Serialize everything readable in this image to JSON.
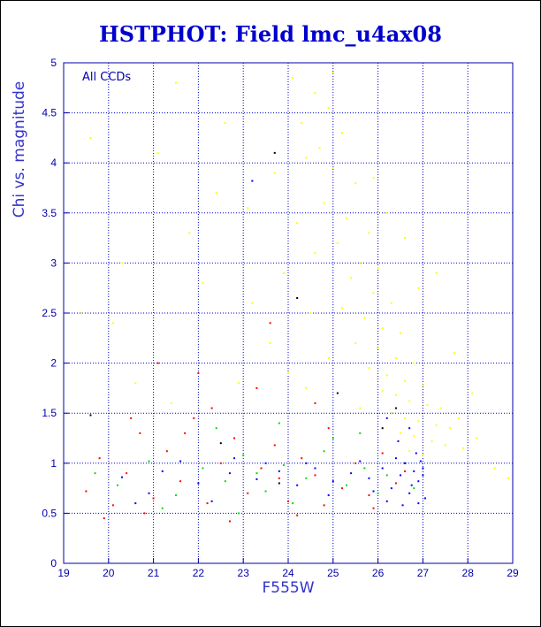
{
  "colors": {
    "yellow": "#ffff00",
    "red": "#ff0000",
    "green": "#00dd00",
    "blue": "#0000ff",
    "black": "#000000",
    "axis": "#0000aa",
    "text": "#0000cc"
  },
  "chart_data": {
    "type": "scatter",
    "title": "HSTPHOT: Field lmc_u4ax08",
    "xlabel": "F555W",
    "ylabel": "Chi vs. magnitude",
    "annotation": "All CCDs",
    "xlim": [
      19,
      29
    ],
    "ylim": [
      0,
      5
    ],
    "xticks": [
      "19",
      "20",
      "21",
      "22",
      "23",
      "24",
      "25",
      "26",
      "27",
      "28",
      "29"
    ],
    "yticks": [
      "0",
      "0.5",
      "1",
      "1.5",
      "2",
      "2.5",
      "3",
      "3.5",
      "4",
      "4.5",
      "5"
    ],
    "grid": true,
    "series": [
      {
        "color": "yellow",
        "points": [
          [
            24.1,
            4.85
          ],
          [
            24.6,
            4.7
          ],
          [
            24.9,
            4.55
          ],
          [
            25.2,
            4.3
          ],
          [
            24.4,
            4.05
          ],
          [
            25.0,
            3.95
          ],
          [
            25.5,
            3.8
          ],
          [
            24.8,
            3.6
          ],
          [
            25.3,
            3.45
          ],
          [
            25.8,
            3.3
          ],
          [
            25.1,
            3.2
          ],
          [
            24.6,
            3.1
          ],
          [
            25.6,
            3.0
          ],
          [
            26.0,
            2.95
          ],
          [
            25.4,
            2.85
          ],
          [
            25.9,
            2.7
          ],
          [
            26.3,
            2.6
          ],
          [
            25.2,
            2.55
          ],
          [
            25.7,
            2.45
          ],
          [
            26.1,
            2.35
          ],
          [
            26.5,
            2.3
          ],
          [
            25.5,
            2.2
          ],
          [
            26.0,
            2.15
          ],
          [
            26.4,
            2.05
          ],
          [
            26.8,
            2.0
          ],
          [
            25.8,
            1.95
          ],
          [
            26.2,
            1.88
          ],
          [
            26.6,
            1.82
          ],
          [
            27.0,
            1.78
          ],
          [
            26.1,
            1.72
          ],
          [
            26.4,
            1.68
          ],
          [
            26.7,
            1.62
          ],
          [
            27.1,
            1.58
          ],
          [
            27.4,
            1.55
          ],
          [
            26.3,
            1.5
          ],
          [
            26.6,
            1.45
          ],
          [
            26.9,
            1.42
          ],
          [
            27.3,
            1.38
          ],
          [
            27.6,
            1.35
          ],
          [
            26.5,
            1.3
          ],
          [
            26.8,
            1.27
          ],
          [
            27.2,
            1.22
          ],
          [
            27.5,
            1.18
          ],
          [
            27.9,
            1.15
          ],
          [
            26.7,
            1.12
          ],
          [
            27.0,
            1.08
          ],
          [
            28.2,
            1.25
          ],
          [
            28.6,
            0.95
          ],
          [
            27.8,
            1.45
          ],
          [
            26.2,
            3.5
          ],
          [
            25.0,
            4.9
          ],
          [
            24.3,
            4.4
          ],
          [
            23.7,
            3.9
          ],
          [
            24.2,
            3.4
          ],
          [
            23.9,
            2.9
          ],
          [
            24.5,
            2.5
          ],
          [
            23.6,
            2.2
          ],
          [
            24.0,
            1.9
          ],
          [
            22.6,
            4.4
          ],
          [
            21.8,
            3.3
          ],
          [
            20.3,
            3.0
          ],
          [
            19.6,
            4.25
          ],
          [
            21.5,
            4.8
          ],
          [
            23.2,
            2.6
          ],
          [
            26.9,
            2.75
          ],
          [
            27.7,
            2.1
          ],
          [
            28.1,
            1.7
          ],
          [
            28.9,
            0.85
          ],
          [
            22.9,
            1.8
          ],
          [
            21.4,
            1.6
          ],
          [
            20.6,
            1.8
          ],
          [
            19.4,
            2.5
          ],
          [
            20.1,
            2.4
          ],
          [
            22.1,
            2.8
          ],
          [
            24.7,
            4.15
          ],
          [
            25.9,
            3.85
          ],
          [
            26.6,
            3.25
          ],
          [
            27.3,
            2.9
          ],
          [
            23.1,
            3.55
          ],
          [
            22.4,
            3.7
          ],
          [
            21.1,
            4.1
          ],
          [
            24.9,
            2.05
          ],
          [
            25.6,
            1.55
          ],
          [
            24.4,
            1.75
          ]
        ]
      },
      {
        "color": "red",
        "points": [
          [
            19.5,
            0.72
          ],
          [
            19.8,
            1.05
          ],
          [
            20.1,
            0.58
          ],
          [
            20.4,
            0.9
          ],
          [
            20.7,
            1.3
          ],
          [
            21.0,
            0.65
          ],
          [
            21.3,
            1.12
          ],
          [
            21.6,
            0.82
          ],
          [
            21.9,
            1.45
          ],
          [
            22.2,
            0.6
          ],
          [
            22.5,
            1.0
          ],
          [
            22.8,
            1.25
          ],
          [
            23.1,
            0.7
          ],
          [
            23.4,
            0.95
          ],
          [
            23.7,
            1.18
          ],
          [
            24.0,
            0.62
          ],
          [
            24.3,
            1.05
          ],
          [
            24.6,
            0.88
          ],
          [
            24.9,
            1.35
          ],
          [
            25.2,
            0.75
          ],
          [
            25.5,
            1.0
          ],
          [
            25.8,
            0.68
          ],
          [
            26.1,
            1.1
          ],
          [
            26.4,
            0.8
          ],
          [
            23.3,
            1.75
          ],
          [
            22.0,
            1.9
          ],
          [
            24.6,
            1.6
          ],
          [
            21.1,
            2.0
          ],
          [
            19.9,
            0.45
          ],
          [
            20.8,
            0.5
          ],
          [
            22.7,
            0.42
          ],
          [
            24.2,
            0.48
          ],
          [
            25.9,
            0.55
          ],
          [
            23.8,
            0.85
          ],
          [
            20.5,
            1.45
          ],
          [
            26.6,
            0.92
          ],
          [
            22.3,
            1.55
          ],
          [
            23.6,
            2.4
          ],
          [
            21.7,
            1.3
          ],
          [
            24.8,
            0.58
          ]
        ]
      },
      {
        "color": "green",
        "points": [
          [
            20.2,
            0.78
          ],
          [
            20.9,
            1.02
          ],
          [
            21.5,
            0.68
          ],
          [
            22.1,
            0.95
          ],
          [
            22.6,
            0.82
          ],
          [
            23.0,
            1.08
          ],
          [
            23.5,
            0.72
          ],
          [
            23.9,
            0.98
          ],
          [
            24.4,
            0.85
          ],
          [
            24.8,
            1.12
          ],
          [
            25.3,
            0.78
          ],
          [
            25.7,
            0.95
          ],
          [
            26.2,
            0.88
          ],
          [
            26.6,
            1.0
          ],
          [
            22.4,
            1.35
          ],
          [
            23.8,
            1.4
          ],
          [
            25.0,
            1.25
          ],
          [
            21.2,
            0.55
          ],
          [
            24.1,
            0.6
          ],
          [
            26.0,
            0.7
          ],
          [
            19.7,
            0.9
          ],
          [
            22.9,
            0.5
          ],
          [
            25.6,
            1.3
          ],
          [
            23.3,
            0.9
          ],
          [
            26.8,
            0.75
          ]
        ]
      },
      {
        "color": "blue",
        "points": [
          [
            20.3,
            0.86
          ],
          [
            21.2,
            0.92
          ],
          [
            22.0,
            0.8
          ],
          [
            22.7,
            0.9
          ],
          [
            23.3,
            0.84
          ],
          [
            23.8,
            0.92
          ],
          [
            24.2,
            0.78
          ],
          [
            24.6,
            0.95
          ],
          [
            25.0,
            0.82
          ],
          [
            25.4,
            0.9
          ],
          [
            25.8,
            0.85
          ],
          [
            26.1,
            0.95
          ],
          [
            26.3,
            0.75
          ],
          [
            26.5,
            0.88
          ],
          [
            26.6,
            1.0
          ],
          [
            26.7,
            0.7
          ],
          [
            26.8,
            0.92
          ],
          [
            26.9,
            0.82
          ],
          [
            27.0,
            0.95
          ],
          [
            27.05,
            0.65
          ],
          [
            26.4,
            1.05
          ],
          [
            26.2,
            0.62
          ],
          [
            25.6,
            1.02
          ],
          [
            24.9,
            0.68
          ],
          [
            23.5,
            1.0
          ],
          [
            22.3,
            0.62
          ],
          [
            21.6,
            1.02
          ],
          [
            20.9,
            0.7
          ],
          [
            26.85,
            1.1
          ],
          [
            26.55,
            0.58
          ],
          [
            27.0,
            0.88
          ],
          [
            26.75,
            0.78
          ],
          [
            26.95,
            1.02
          ],
          [
            25.9,
            0.72
          ],
          [
            24.4,
            1.0
          ],
          [
            22.8,
            1.05
          ],
          [
            26.45,
            1.22
          ],
          [
            26.7,
            1.35
          ],
          [
            26.2,
            1.45
          ],
          [
            23.2,
            3.82
          ],
          [
            20.6,
            0.6
          ],
          [
            26.9,
            0.6
          ]
        ]
      },
      {
        "color": "black",
        "points": [
          [
            19.6,
            1.48
          ],
          [
            23.7,
            4.1
          ],
          [
            23.8,
            0.8
          ],
          [
            26.1,
            1.35
          ],
          [
            24.2,
            2.65
          ],
          [
            26.4,
            1.55
          ],
          [
            22.5,
            1.2
          ],
          [
            25.1,
            1.7
          ]
        ]
      }
    ]
  }
}
